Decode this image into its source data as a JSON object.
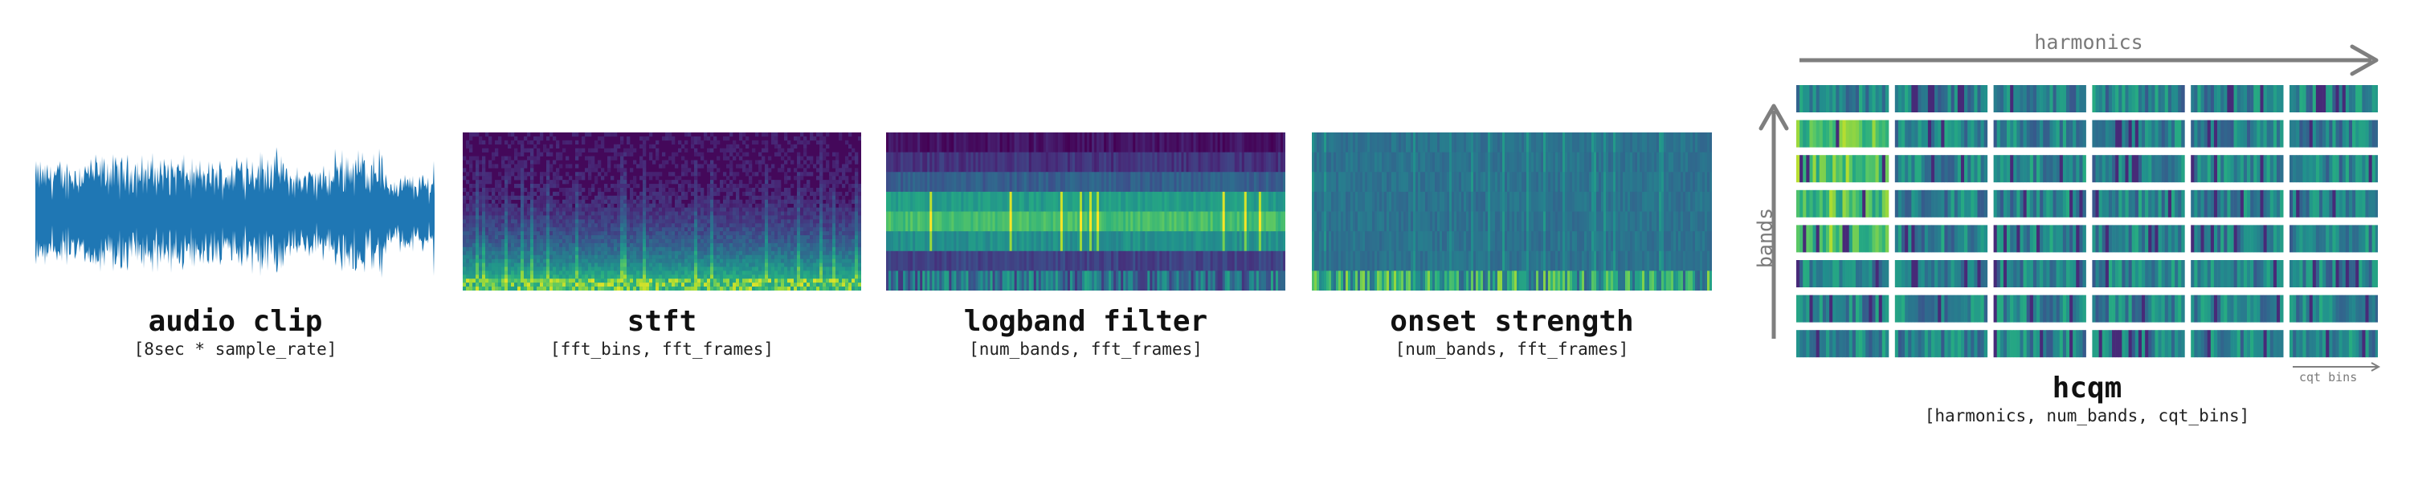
{
  "panels": [
    {
      "id": "audio",
      "title": "audio clip",
      "shape": "[8sec * sample_rate]"
    },
    {
      "id": "stft",
      "title": "stft",
      "shape": "[fft_bins, fft_frames]"
    },
    {
      "id": "logband",
      "title": "logband filter",
      "shape": "[num_bands, fft_frames]"
    },
    {
      "id": "onset",
      "title": "onset strength",
      "shape": "[num_bands, fft_frames]"
    },
    {
      "id": "hcqm",
      "title": "hcqm",
      "shape": "[harmonics, num_bands, cqt_bins]"
    }
  ],
  "hcqm_axes": {
    "x_label": "harmonics",
    "y_label": "bands",
    "small_label": "cqt bins"
  },
  "hcqm_grid": {
    "harmonics": 6,
    "bands": 8
  },
  "colors": {
    "waveform": "#1f77b4",
    "arrow": "#7f7f7f",
    "colormap": "viridis"
  }
}
